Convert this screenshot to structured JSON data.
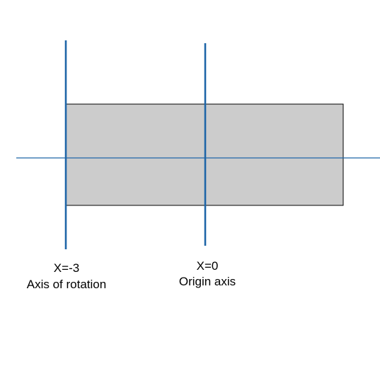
{
  "colors": {
    "axis_line": "#1f66a8",
    "rect_fill": "#cccccc",
    "rect_stroke": "#000000",
    "text": "#000000"
  },
  "labels": {
    "rotation_axis": {
      "value": "X=-3",
      "caption": "Axis of rotation"
    },
    "origin_axis": {
      "value": "X=0",
      "caption": "Origin axis"
    }
  }
}
